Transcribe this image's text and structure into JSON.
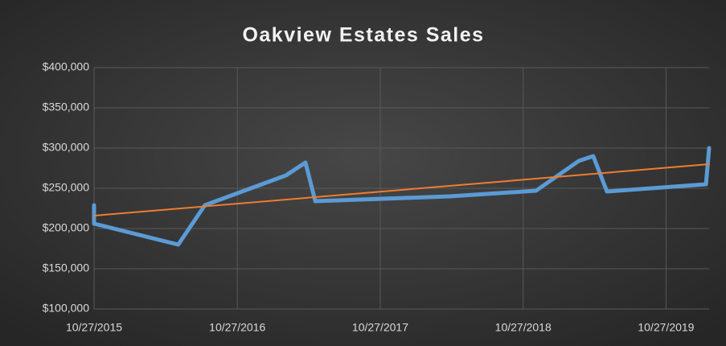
{
  "chart_data": {
    "type": "line",
    "title": "Oakview Estates Sales",
    "series": [
      {
        "color": "#5b9bd5",
        "x": [
          "2015-10-27",
          "2015-10-27",
          "2016-05-29",
          "2016-08-05",
          "2017-02-28",
          "2017-04-19",
          "2017-05-14",
          "2018-04-23",
          "2018-11-29",
          "2019-03-18",
          "2019-04-24",
          "2019-05-29",
          "2020-02-06",
          "2020-02-14"
        ],
        "values": [
          229000,
          206000,
          180000,
          229000,
          266000,
          282000,
          234000,
          240000,
          247000,
          284000,
          290000,
          246000,
          255000,
          300000
        ]
      },
      {
        "color": "#ed7d31",
        "x": [
          "2015-10-27",
          "2020-02-14"
        ],
        "values": [
          216000,
          280000
        ]
      }
    ],
    "xlim": [
      "2015-10-27",
      "2020-02-14"
    ],
    "xticks": [
      {
        "value": "2015-10-27",
        "label": "10/27/2015"
      },
      {
        "value": "2016-10-27",
        "label": "10/27/2016"
      },
      {
        "value": "2017-10-27",
        "label": "10/27/2017"
      },
      {
        "value": "2018-10-27",
        "label": "10/27/2018"
      },
      {
        "value": "2019-10-27",
        "label": "10/27/2019"
      }
    ],
    "ylim": [
      100000,
      400000
    ],
    "yticks": [
      {
        "value": 100000,
        "label": "$100,000"
      },
      {
        "value": 150000,
        "label": "$150,000"
      },
      {
        "value": 200000,
        "label": "$200,000"
      },
      {
        "value": 250000,
        "label": "$250,000"
      },
      {
        "value": 300000,
        "label": "$300,000"
      },
      {
        "value": 350000,
        "label": "$350,000"
      },
      {
        "value": 400000,
        "label": "$400,000"
      }
    ],
    "grid": true
  }
}
